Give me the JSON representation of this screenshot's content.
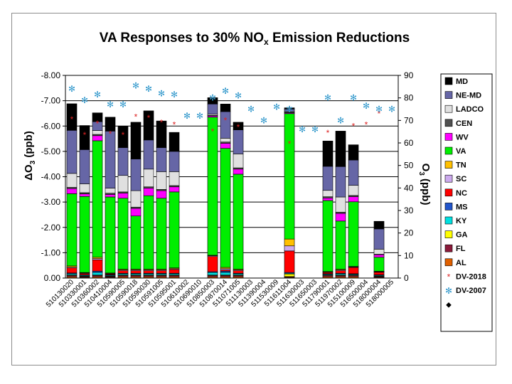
{
  "chart_data": {
    "type": "bar",
    "stacked": true,
    "title": "VA Responses to 30% NO",
    "title_subscript": "x",
    "title_suffix": " Emission Reductions",
    "ylabel_left": "ΔO",
    "ylabel_left_sub": "3",
    "ylabel_left_suffix": " (ppb)",
    "ylabel_right": "O",
    "ylabel_right_sub": "3",
    "ylabel_right_suffix": " (ppb)",
    "left_axis": {
      "min": 0,
      "max": 8,
      "step": 1,
      "reversed": true,
      "tick_labels": [
        "0.00",
        "-1.00",
        "-2.00",
        "-3.00",
        "-4.00",
        "-5.00",
        "-6.00",
        "-7.00",
        "-8.00"
      ]
    },
    "right_axis": {
      "min": 0,
      "max": 90,
      "step": 10,
      "tick_labels": [
        "0",
        "10",
        "20",
        "30",
        "40",
        "50",
        "60",
        "70",
        "80",
        "90"
      ]
    },
    "categories": [
      "510130020",
      "510330001",
      "510360002",
      "510410004",
      "510590005",
      "510590018",
      "510590030",
      "510591005",
      "510595001",
      "510610002",
      "510690010",
      "510850003",
      "510870014",
      "511071005",
      "511130003",
      "511390004",
      "511530009",
      "511611004",
      "511630003",
      "511650003",
      "511790001",
      "511970002",
      "515100009",
      "516500004",
      "518000004",
      "518000005"
    ],
    "series": [
      {
        "name": "MD",
        "color": "#000000",
        "values": [
          1.05,
          0.95,
          0.35,
          0.55,
          0.85,
          1.45,
          1.15,
          1.05,
          0.75,
          0,
          0,
          0.25,
          0.3,
          0.3,
          0,
          0,
          0,
          0.05,
          0,
          0,
          1.0,
          1.4,
          0.6,
          0,
          0.3,
          0
        ]
      },
      {
        "name": "NE-MD",
        "color": "#6666a6",
        "values": [
          1.7,
          1.35,
          0.35,
          2.25,
          1.1,
          1.25,
          1.15,
          0.95,
          0.8,
          0,
          0,
          0.4,
          1.05,
          0.95,
          0,
          0,
          0,
          0.1,
          0,
          0,
          0.95,
          1.2,
          1.0,
          0,
          0.8,
          0
        ]
      },
      {
        "name": "LADCO",
        "color": "#e0e0e0",
        "values": [
          0.55,
          0.35,
          0.15,
          0.2,
          0.65,
          0.65,
          0.7,
          0.7,
          0.55,
          0,
          0,
          0.05,
          0.15,
          0.55,
          0,
          0,
          0,
          0.03,
          0,
          0,
          0.25,
          0.6,
          0.4,
          0,
          0.2,
          0
        ]
      },
      {
        "name": "CEN",
        "color": "#505050",
        "values": [
          0.05,
          0.05,
          0.05,
          0.05,
          0.05,
          0.05,
          0.05,
          0.05,
          0.05,
          0,
          0,
          0.02,
          0.05,
          0.05,
          0,
          0,
          0,
          0.02,
          0,
          0,
          0.05,
          0.05,
          0.05,
          0,
          0.02,
          0
        ]
      },
      {
        "name": "WV",
        "color": "#ff00ff",
        "values": [
          0.2,
          0.1,
          0.2,
          0.1,
          0.2,
          0.3,
          0.3,
          0.3,
          0.2,
          0,
          0,
          0.05,
          0.2,
          0.2,
          0,
          0,
          0,
          0.03,
          0,
          0,
          0.1,
          0.3,
          0.2,
          0,
          0.1,
          0
        ]
      },
      {
        "name": "VA",
        "color": "#00ee00",
        "values": [
          2.85,
          3.0,
          4.6,
          3.0,
          2.8,
          2.1,
          2.9,
          2.8,
          3.0,
          0,
          0,
          5.45,
          4.7,
          3.75,
          0,
          0,
          0,
          4.95,
          0,
          0,
          2.8,
          1.9,
          2.55,
          0,
          0.55,
          0
        ]
      },
      {
        "name": "TN",
        "color": "#ffc000",
        "values": [
          0.05,
          0.02,
          0.05,
          0.02,
          0.03,
          0.03,
          0.03,
          0.03,
          0.03,
          0,
          0,
          0.02,
          0.05,
          0.03,
          0,
          0,
          0,
          0.27,
          0,
          0,
          0.02,
          0.03,
          0.02,
          0,
          0.02,
          0
        ]
      },
      {
        "name": "SC",
        "color": "#ccaaee",
        "values": [
          0.03,
          0.02,
          0.05,
          0.02,
          0.03,
          0.03,
          0.03,
          0.03,
          0.03,
          0,
          0,
          0.03,
          0.05,
          0.03,
          0,
          0,
          0,
          0.2,
          0,
          0,
          0.02,
          0.03,
          0.02,
          0,
          0.02,
          0
        ]
      },
      {
        "name": "NC",
        "color": "#ff0000",
        "values": [
          0.2,
          0.05,
          0.45,
          0.03,
          0.1,
          0.1,
          0.1,
          0.1,
          0.15,
          0,
          0,
          0.6,
          0.05,
          0.1,
          0,
          0,
          0,
          0.85,
          0,
          0,
          0.05,
          0.1,
          0.25,
          0,
          0.1,
          0
        ]
      },
      {
        "name": "MS",
        "color": "#2255cc",
        "values": [
          0.03,
          0.02,
          0.05,
          0.02,
          0.02,
          0.02,
          0.02,
          0.02,
          0.02,
          0,
          0,
          0.03,
          0.05,
          0.02,
          0,
          0,
          0,
          0.03,
          0,
          0,
          0.02,
          0.02,
          0.02,
          0,
          0.02,
          0
        ]
      },
      {
        "name": "KY",
        "color": "#00e0e0",
        "values": [
          0.05,
          0.03,
          0.1,
          0.03,
          0.05,
          0.05,
          0.05,
          0.05,
          0.05,
          0,
          0,
          0.1,
          0.1,
          0.05,
          0,
          0,
          0,
          0.03,
          0,
          0,
          0.03,
          0.05,
          0.03,
          0,
          0.03,
          0
        ]
      },
      {
        "name": "GA",
        "color": "#ffff00",
        "values": [
          0.02,
          0.02,
          0.02,
          0.02,
          0.02,
          0.02,
          0.02,
          0.02,
          0.02,
          0,
          0,
          0.02,
          0.02,
          0.02,
          0,
          0,
          0,
          0.1,
          0,
          0,
          0.02,
          0.02,
          0.02,
          0,
          0.02,
          0
        ]
      },
      {
        "name": "FL",
        "color": "#8b1a3a",
        "values": [
          0.05,
          0.03,
          0.05,
          0.03,
          0.05,
          0.05,
          0.05,
          0.05,
          0.05,
          0,
          0,
          0.05,
          0.05,
          0.05,
          0,
          0,
          0,
          0.03,
          0,
          0,
          0.05,
          0.05,
          0.05,
          0,
          0.03,
          0
        ]
      },
      {
        "name": "AL",
        "color": "#e06000",
        "values": [
          0.05,
          0.03,
          0.05,
          0.03,
          0.05,
          0.05,
          0.05,
          0.05,
          0.05,
          0,
          0,
          0.05,
          0.05,
          0.05,
          0,
          0,
          0,
          0.03,
          0,
          0,
          0.05,
          0.05,
          0.05,
          0,
          0.03,
          0
        ]
      }
    ],
    "markers": [
      {
        "name": "DV-2018",
        "color": "#dd2222",
        "glyph": "*",
        "axis": "right",
        "values": [
          70.5,
          63.5,
          68.5,
          64,
          63.5,
          71.5,
          71,
          69,
          68,
          null,
          null,
          65,
          70,
          67,
          null,
          null,
          null,
          59.5,
          null,
          null,
          64.5,
          null,
          67.5,
          68,
          73,
          null
        ]
      },
      {
        "name": "DV-2007",
        "color": "#3399cc",
        "glyph": "✻",
        "axis": "right",
        "values": [
          84,
          79,
          81.5,
          77,
          77,
          85.5,
          84,
          82,
          81.5,
          72,
          72,
          80,
          83,
          81,
          75,
          70,
          76,
          75,
          66,
          66,
          80,
          70,
          80,
          76.5,
          75,
          75
        ]
      }
    ],
    "legend_extra": {
      "name": "",
      "glyph": "◆",
      "color": "#000000"
    },
    "grid": true,
    "legend_position": "right"
  }
}
